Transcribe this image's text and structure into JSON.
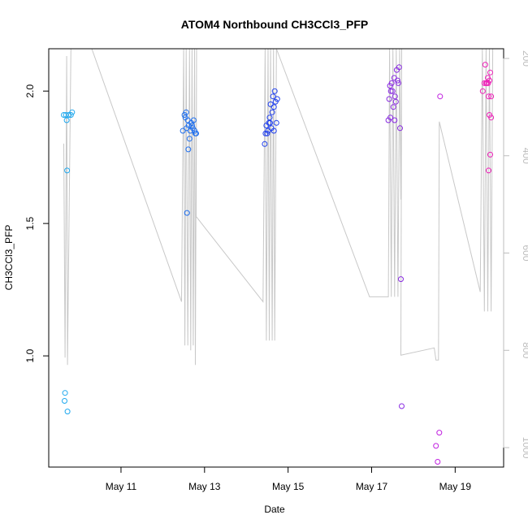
{
  "chart_data": {
    "type": "scatter",
    "title": "ATOM4 Northbound CH3CCl3_PFP",
    "xlabel": "Date",
    "ylabel": "CH3CCl3_PFP",
    "x_ticks": [
      {
        "x": 11,
        "label": "May 11"
      },
      {
        "x": 13,
        "label": "May 13"
      },
      {
        "x": 15,
        "label": "May 15"
      },
      {
        "x": 17,
        "label": "May 17"
      },
      {
        "x": 19,
        "label": "May 19"
      }
    ],
    "xlim": [
      9.27,
      20.16
    ],
    "ylim": [
      0.58,
      2.16
    ],
    "y_ticks": [
      1.0,
      1.5,
      2.0
    ],
    "y_tick_labels": [
      "1.0",
      "1.5",
      "2.0"
    ],
    "right_axis": {
      "quantity": "pressure",
      "reversed": true,
      "range": [
        180,
        1040
      ],
      "ticks": [
        200,
        400,
        600,
        800,
        1000
      ],
      "tick_labels": [
        "200",
        "400",
        "600",
        "800",
        "1000"
      ],
      "color": "#bdbdbd"
    },
    "legend": "none",
    "grid": false,
    "points": [
      {
        "x": 9.63,
        "y": 1.91,
        "color": "#1fa8ee"
      },
      {
        "x": 9.68,
        "y": 1.91,
        "color": "#1fa8ee"
      },
      {
        "x": 9.7,
        "y": 1.89,
        "color": "#1fa8ee"
      },
      {
        "x": 9.71,
        "y": 1.7,
        "color": "#1fa8ee"
      },
      {
        "x": 9.75,
        "y": 1.91,
        "color": "#1fa8ee"
      },
      {
        "x": 9.8,
        "y": 1.91,
        "color": "#1fa8ee"
      },
      {
        "x": 9.83,
        "y": 1.92,
        "color": "#1fa8ee"
      },
      {
        "x": 9.66,
        "y": 0.86,
        "color": "#1fa8ee"
      },
      {
        "x": 9.65,
        "y": 0.83,
        "color": "#1fa8ee"
      },
      {
        "x": 9.72,
        "y": 0.79,
        "color": "#1fa8ee"
      },
      {
        "x": 12.48,
        "y": 1.85,
        "color": "#1f6fee"
      },
      {
        "x": 12.52,
        "y": 1.91,
        "color": "#1f6fee"
      },
      {
        "x": 12.54,
        "y": 1.9,
        "color": "#1f6fee"
      },
      {
        "x": 12.56,
        "y": 1.92,
        "color": "#1f6fee"
      },
      {
        "x": 12.57,
        "y": 1.86,
        "color": "#1f6fee"
      },
      {
        "x": 12.6,
        "y": 1.89,
        "color": "#1f6fee"
      },
      {
        "x": 12.62,
        "y": 1.87,
        "color": "#1f6fee"
      },
      {
        "x": 12.64,
        "y": 1.82,
        "color": "#1f6fee"
      },
      {
        "x": 12.66,
        "y": 1.85,
        "color": "#1f6fee"
      },
      {
        "x": 12.68,
        "y": 1.88,
        "color": "#1f6fee"
      },
      {
        "x": 12.7,
        "y": 1.87,
        "color": "#1f6fee"
      },
      {
        "x": 12.72,
        "y": 1.86,
        "color": "#1f6fee"
      },
      {
        "x": 12.74,
        "y": 1.89,
        "color": "#1f6fee"
      },
      {
        "x": 12.76,
        "y": 1.85,
        "color": "#1f6fee"
      },
      {
        "x": 12.78,
        "y": 1.84,
        "color": "#1f6fee"
      },
      {
        "x": 12.8,
        "y": 1.84,
        "color": "#1f6fee"
      },
      {
        "x": 12.61,
        "y": 1.78,
        "color": "#1f6fee"
      },
      {
        "x": 12.58,
        "y": 1.54,
        "color": "#1f6fee"
      },
      {
        "x": 14.44,
        "y": 1.8,
        "color": "#1f3fee"
      },
      {
        "x": 14.46,
        "y": 1.84,
        "color": "#1f3fee"
      },
      {
        "x": 14.48,
        "y": 1.87,
        "color": "#1f3fee"
      },
      {
        "x": 14.5,
        "y": 1.84,
        "color": "#1f3fee"
      },
      {
        "x": 14.52,
        "y": 1.85,
        "color": "#1f3fee"
      },
      {
        "x": 14.54,
        "y": 1.88,
        "color": "#1f3fee"
      },
      {
        "x": 14.56,
        "y": 1.9,
        "color": "#1f3fee"
      },
      {
        "x": 14.57,
        "y": 1.88,
        "color": "#1f3fee"
      },
      {
        "x": 14.58,
        "y": 1.95,
        "color": "#1f3fee"
      },
      {
        "x": 14.6,
        "y": 1.86,
        "color": "#1f3fee"
      },
      {
        "x": 14.62,
        "y": 1.92,
        "color": "#1f3fee"
      },
      {
        "x": 14.64,
        "y": 1.98,
        "color": "#1f3fee"
      },
      {
        "x": 14.66,
        "y": 1.94,
        "color": "#1f3fee"
      },
      {
        "x": 14.68,
        "y": 2.0,
        "color": "#1f3fee"
      },
      {
        "x": 14.7,
        "y": 1.96,
        "color": "#1f3fee"
      },
      {
        "x": 14.72,
        "y": 1.88,
        "color": "#1f3fee"
      },
      {
        "x": 14.74,
        "y": 1.97,
        "color": "#1f3fee"
      },
      {
        "x": 14.66,
        "y": 1.85,
        "color": "#1f3fee"
      },
      {
        "x": 17.4,
        "y": 1.89,
        "color": "#8a2be2"
      },
      {
        "x": 17.42,
        "y": 1.97,
        "color": "#8a2be2"
      },
      {
        "x": 17.44,
        "y": 2.02,
        "color": "#8a2be2"
      },
      {
        "x": 17.46,
        "y": 2.0,
        "color": "#8a2be2"
      },
      {
        "x": 17.48,
        "y": 2.03,
        "color": "#8a2be2"
      },
      {
        "x": 17.5,
        "y": 2.0,
        "color": "#8a2be2"
      },
      {
        "x": 17.52,
        "y": 1.94,
        "color": "#8a2be2"
      },
      {
        "x": 17.54,
        "y": 2.05,
        "color": "#8a2be2"
      },
      {
        "x": 17.56,
        "y": 1.98,
        "color": "#8a2be2"
      },
      {
        "x": 17.58,
        "y": 1.96,
        "color": "#8a2be2"
      },
      {
        "x": 17.6,
        "y": 2.08,
        "color": "#8a2be2"
      },
      {
        "x": 17.62,
        "y": 2.04,
        "color": "#8a2be2"
      },
      {
        "x": 17.64,
        "y": 2.03,
        "color": "#8a2be2"
      },
      {
        "x": 17.66,
        "y": 2.09,
        "color": "#8a2be2"
      },
      {
        "x": 17.68,
        "y": 1.86,
        "color": "#8a2be2"
      },
      {
        "x": 17.45,
        "y": 1.9,
        "color": "#8a2be2"
      },
      {
        "x": 17.55,
        "y": 1.89,
        "color": "#8a2be2"
      },
      {
        "x": 17.7,
        "y": 1.29,
        "color": "#8a2be2"
      },
      {
        "x": 17.72,
        "y": 0.81,
        "color": "#8a2be2"
      },
      {
        "x": 18.54,
        "y": 0.66,
        "color": "#c020e0"
      },
      {
        "x": 18.58,
        "y": 0.6,
        "color": "#c020e0"
      },
      {
        "x": 18.62,
        "y": 0.71,
        "color": "#c020e0"
      },
      {
        "x": 18.64,
        "y": 1.98,
        "color": "#c020e0"
      },
      {
        "x": 19.66,
        "y": 2.0,
        "color": "#ee20b8"
      },
      {
        "x": 19.7,
        "y": 2.03,
        "color": "#ee20b8"
      },
      {
        "x": 19.72,
        "y": 2.1,
        "color": "#ee20b8"
      },
      {
        "x": 19.74,
        "y": 2.03,
        "color": "#ee20b8"
      },
      {
        "x": 19.76,
        "y": 2.03,
        "color": "#ee20b8"
      },
      {
        "x": 19.78,
        "y": 2.05,
        "color": "#ee20b8"
      },
      {
        "x": 19.8,
        "y": 1.98,
        "color": "#ee20b8"
      },
      {
        "x": 19.82,
        "y": 2.04,
        "color": "#ee20b8"
      },
      {
        "x": 19.84,
        "y": 2.07,
        "color": "#ee20b8"
      },
      {
        "x": 19.86,
        "y": 1.98,
        "color": "#ee20b8"
      },
      {
        "x": 19.82,
        "y": 1.91,
        "color": "#ee20b8"
      },
      {
        "x": 19.86,
        "y": 1.9,
        "color": "#ee20b8"
      },
      {
        "x": 19.84,
        "y": 1.76,
        "color": "#ee20b8"
      },
      {
        "x": 19.8,
        "y": 1.7,
        "color": "#ee20b8"
      },
      {
        "x": 19.79,
        "y": 2.03,
        "color": "#ee20b8"
      }
    ],
    "pressure_trace": {
      "color": "#c8c8c8",
      "points": [
        [
          9.63,
          375
        ],
        [
          9.66,
          815
        ],
        [
          9.7,
          195
        ],
        [
          9.72,
          830
        ],
        [
          9.8,
          180
        ],
        [
          9.86,
          180
        ],
        [
          10.3,
          180
        ],
        [
          12.45,
          700
        ],
        [
          12.5,
          180
        ],
        [
          12.53,
          790
        ],
        [
          12.56,
          180
        ],
        [
          12.6,
          790
        ],
        [
          12.64,
          180
        ],
        [
          12.67,
          800
        ],
        [
          12.7,
          180
        ],
        [
          12.73,
          790
        ],
        [
          12.76,
          180
        ],
        [
          12.78,
          830
        ],
        [
          12.81,
          180
        ],
        [
          12.8,
          525
        ],
        [
          14.4,
          700
        ],
        [
          14.45,
          180
        ],
        [
          14.48,
          780
        ],
        [
          14.52,
          180
        ],
        [
          14.55,
          780
        ],
        [
          14.58,
          180
        ],
        [
          14.62,
          780
        ],
        [
          14.65,
          180
        ],
        [
          14.68,
          780
        ],
        [
          14.72,
          180
        ],
        [
          16.95,
          690
        ],
        [
          17.4,
          690
        ],
        [
          17.43,
          180
        ],
        [
          17.47,
          690
        ],
        [
          17.51,
          180
        ],
        [
          17.55,
          690
        ],
        [
          17.59,
          180
        ],
        [
          17.63,
          690
        ],
        [
          17.67,
          180
        ],
        [
          17.7,
          490
        ],
        [
          17.72,
          180
        ],
        [
          17.7,
          810
        ],
        [
          18.5,
          795
        ],
        [
          18.54,
          820
        ],
        [
          18.6,
          820
        ],
        [
          18.62,
          330
        ],
        [
          19.6,
          680
        ],
        [
          19.65,
          180
        ],
        [
          19.7,
          720
        ],
        [
          19.74,
          180
        ],
        [
          19.78,
          720
        ],
        [
          19.82,
          180
        ],
        [
          19.86,
          720
        ],
        [
          19.9,
          180
        ]
      ]
    }
  }
}
